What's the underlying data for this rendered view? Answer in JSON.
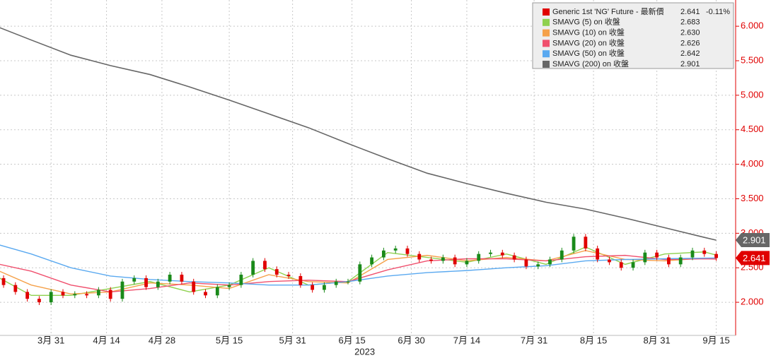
{
  "chart_data": {
    "type": "candlestick",
    "xlim": [
      77.1,
      262.9
    ],
    "ylim": [
      1.52,
      6.38
    ],
    "grid": true,
    "xticks": [
      {
        "value": 90,
        "label": "3月 31"
      },
      {
        "value": 104,
        "label": "4月 14"
      },
      {
        "value": 118,
        "label": "4月 28"
      },
      {
        "value": 135,
        "label": "5月 15"
      },
      {
        "value": 151,
        "label": "5月 31"
      },
      {
        "value": 166,
        "label": "6月 15"
      },
      {
        "value": 181,
        "label": "6月 30"
      },
      {
        "value": 195,
        "label": "7月 14"
      },
      {
        "value": 212,
        "label": "7月 31"
      },
      {
        "value": 227,
        "label": "8月 15"
      },
      {
        "value": 243,
        "label": "8月 31"
      },
      {
        "value": 258,
        "label": "9月 15"
      }
    ],
    "year_label": "2023",
    "yticks": [
      {
        "value": 2.0,
        "label": "2.000"
      },
      {
        "value": 2.5,
        "label": "2.500"
      },
      {
        "value": 3.0,
        "label": "3.000"
      },
      {
        "value": 3.5,
        "label": "3.500"
      },
      {
        "value": 4.0,
        "label": "4.000"
      },
      {
        "value": 4.5,
        "label": "4.500"
      },
      {
        "value": 5.0,
        "label": "5.000"
      },
      {
        "value": 5.5,
        "label": "5.500"
      },
      {
        "value": 6.0,
        "label": "6.000"
      }
    ],
    "axis_color": "#e00000",
    "candles": {
      "name": "Generic 1st 'NG' Future - 最新價",
      "color": "#e00000",
      "last_label": "2.641",
      "change_label": "-0.11%",
      "up_color": "#1a8a1a",
      "down_color": "#e00000",
      "x": [
        78,
        81,
        84,
        87,
        90,
        93,
        96,
        99,
        102,
        105,
        108,
        111,
        114,
        117,
        120,
        123,
        126,
        129,
        132,
        135,
        138,
        141,
        144,
        147,
        150,
        153,
        156,
        159,
        162,
        165,
        168,
        171,
        174,
        177,
        180,
        183,
        186,
        189,
        192,
        195,
        198,
        201,
        204,
        207,
        210,
        213,
        216,
        219,
        222,
        225,
        228,
        231,
        234,
        237,
        240,
        243,
        246,
        249,
        252,
        255,
        258
      ],
      "open": [
        2.35,
        2.25,
        2.15,
        2.05,
        2.0,
        2.15,
        2.1,
        2.12,
        2.1,
        2.18,
        2.05,
        2.3,
        2.35,
        2.22,
        2.3,
        2.4,
        2.3,
        2.15,
        2.1,
        2.22,
        2.25,
        2.4,
        2.6,
        2.48,
        2.4,
        2.38,
        2.25,
        2.18,
        2.25,
        2.3,
        2.3,
        2.55,
        2.65,
        2.75,
        2.78,
        2.7,
        2.62,
        2.6,
        2.65,
        2.55,
        2.6,
        2.7,
        2.72,
        2.68,
        2.62,
        2.52,
        2.55,
        2.62,
        2.75,
        2.95,
        2.78,
        2.62,
        2.58,
        2.5,
        2.58,
        2.72,
        2.65,
        2.55,
        2.65,
        2.75,
        2.7
      ],
      "high": [
        2.39,
        2.29,
        2.19,
        2.09,
        2.19,
        2.19,
        2.16,
        2.16,
        2.22,
        2.22,
        2.34,
        2.39,
        2.39,
        2.34,
        2.44,
        2.44,
        2.34,
        2.19,
        2.26,
        2.29,
        2.44,
        2.64,
        2.64,
        2.52,
        2.44,
        2.42,
        2.29,
        2.29,
        2.34,
        2.34,
        2.59,
        2.69,
        2.79,
        2.82,
        2.82,
        2.74,
        2.66,
        2.69,
        2.69,
        2.64,
        2.74,
        2.76,
        2.76,
        2.72,
        2.66,
        2.59,
        2.66,
        2.79,
        2.99,
        2.99,
        2.82,
        2.66,
        2.62,
        2.62,
        2.76,
        2.76,
        2.69,
        2.69,
        2.79,
        2.79,
        2.74
      ],
      "low": [
        2.21,
        2.11,
        2.01,
        1.96,
        1.96,
        2.06,
        2.06,
        2.06,
        2.06,
        2.01,
        2.01,
        2.26,
        2.18,
        2.18,
        2.26,
        2.26,
        2.11,
        2.06,
        2.06,
        2.18,
        2.21,
        2.36,
        2.44,
        2.36,
        2.34,
        2.21,
        2.14,
        2.14,
        2.21,
        2.26,
        2.26,
        2.51,
        2.61,
        2.71,
        2.66,
        2.58,
        2.56,
        2.56,
        2.51,
        2.51,
        2.56,
        2.66,
        2.64,
        2.58,
        2.48,
        2.48,
        2.51,
        2.58,
        2.71,
        2.74,
        2.58,
        2.54,
        2.46,
        2.46,
        2.54,
        2.61,
        2.51,
        2.51,
        2.61,
        2.66,
        2.6
      ],
      "close": [
        2.25,
        2.15,
        2.05,
        2.0,
        2.15,
        2.1,
        2.12,
        2.1,
        2.18,
        2.05,
        2.3,
        2.35,
        2.22,
        2.3,
        2.4,
        2.3,
        2.15,
        2.1,
        2.22,
        2.25,
        2.4,
        2.6,
        2.48,
        2.4,
        2.38,
        2.25,
        2.18,
        2.25,
        2.3,
        2.3,
        2.55,
        2.65,
        2.75,
        2.78,
        2.7,
        2.62,
        2.6,
        2.65,
        2.55,
        2.6,
        2.7,
        2.72,
        2.68,
        2.62,
        2.52,
        2.55,
        2.62,
        2.75,
        2.95,
        2.78,
        2.62,
        2.58,
        2.5,
        2.58,
        2.72,
        2.65,
        2.55,
        2.65,
        2.75,
        2.7,
        2.641
      ]
    },
    "x": [
      77,
      85,
      95,
      105,
      115,
      125,
      135,
      145,
      155,
      165,
      175,
      185,
      195,
      205,
      215,
      225,
      235,
      245,
      255,
      258
    ],
    "series": [
      {
        "name": "SMAVG (5)  on 收盤",
        "color": "#8fd14f",
        "last_label": "2.683",
        "values": [
          2.35,
          2.1,
          2.1,
          2.2,
          2.3,
          2.15,
          2.25,
          2.5,
          2.25,
          2.3,
          2.72,
          2.65,
          2.58,
          2.7,
          2.55,
          2.8,
          2.55,
          2.7,
          2.73,
          2.683
        ]
      },
      {
        "name": "SMAVG (10)  on 收盤",
        "color": "#f5a14a",
        "last_label": "2.630",
        "values": [
          2.45,
          2.25,
          2.12,
          2.15,
          2.28,
          2.25,
          2.2,
          2.4,
          2.3,
          2.28,
          2.62,
          2.68,
          2.6,
          2.65,
          2.6,
          2.75,
          2.62,
          2.6,
          2.64,
          2.63
        ]
      },
      {
        "name": "SMAVG (20)  on 收盤",
        "color": "#f0506e",
        "last_label": "2.626",
        "values": [
          2.55,
          2.45,
          2.25,
          2.15,
          2.2,
          2.28,
          2.25,
          2.3,
          2.32,
          2.3,
          2.47,
          2.6,
          2.63,
          2.63,
          2.6,
          2.66,
          2.68,
          2.62,
          2.63,
          2.626
        ]
      },
      {
        "name": "SMAVG (50)  on 收盤",
        "color": "#5aa9f0",
        "last_label": "2.642",
        "values": [
          2.83,
          2.7,
          2.5,
          2.38,
          2.33,
          2.3,
          2.28,
          2.25,
          2.25,
          2.3,
          2.38,
          2.43,
          2.46,
          2.5,
          2.53,
          2.6,
          2.62,
          2.63,
          2.64,
          2.642
        ]
      },
      {
        "name": "SMAVG (200)  on 收盤",
        "color": "#666666",
        "last_label": "2.901",
        "values": [
          5.98,
          5.8,
          5.58,
          5.43,
          5.3,
          5.12,
          4.93,
          4.73,
          4.53,
          4.3,
          4.08,
          3.87,
          3.72,
          3.58,
          3.45,
          3.35,
          3.22,
          3.08,
          2.94,
          2.9
        ]
      }
    ],
    "price_tags": [
      {
        "value": 2.901,
        "label": "2.901",
        "color": "#666666"
      },
      {
        "value": 2.641,
        "label": "2.641",
        "color": "#e00000"
      }
    ]
  }
}
